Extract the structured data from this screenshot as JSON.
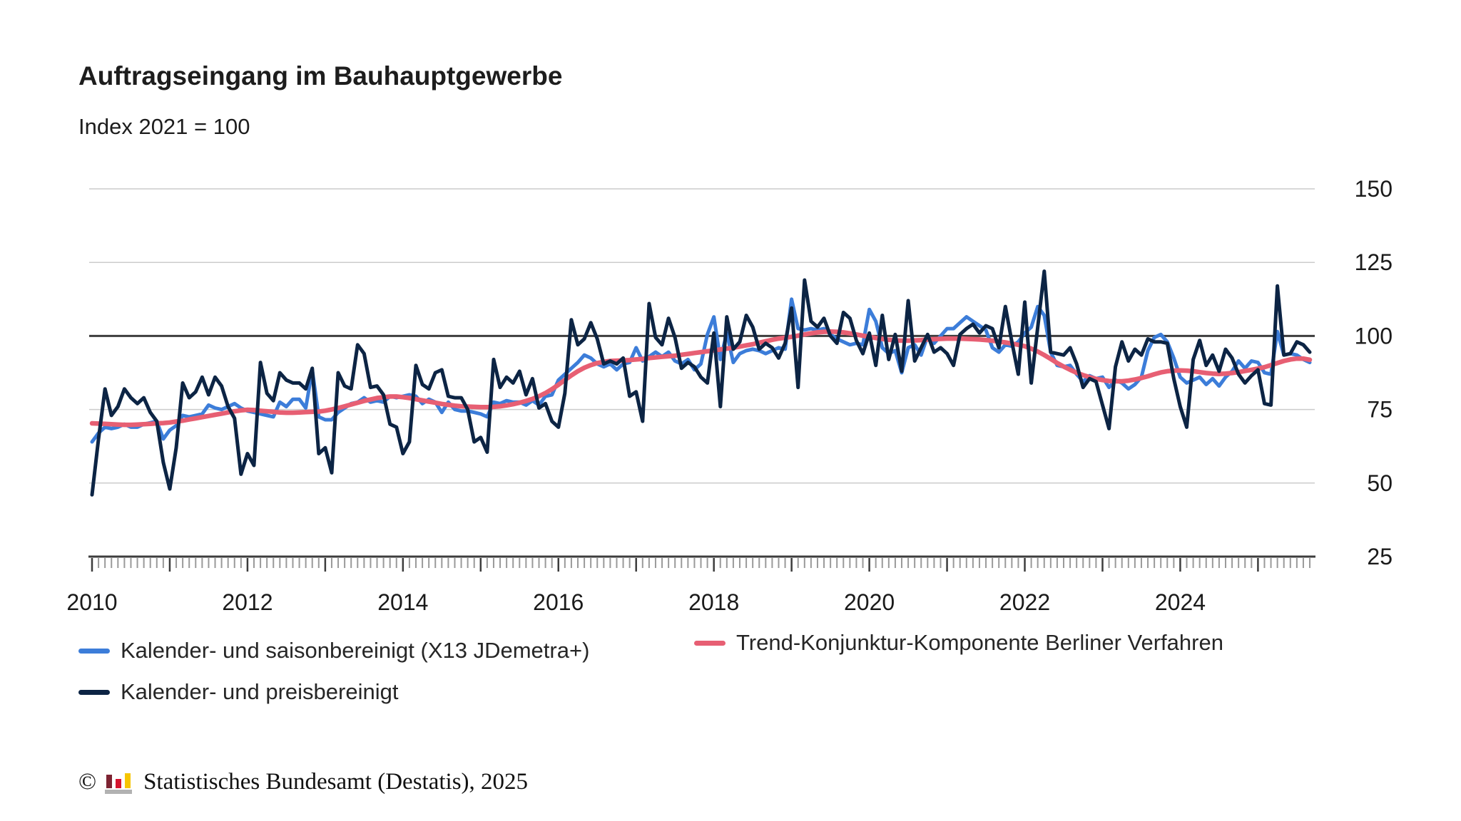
{
  "chart": {
    "title": "Auftragseingang im Bauhauptgewerbe",
    "subtitle": "Index 2021 = 100",
    "copyright_symbol": "©",
    "source": "Statistisches Bundesamt (Destatis), 2025",
    "logo_name": "destatis-bar-chart-logo",
    "colors": {
      "seasonally_adjusted": "#3c7dd9",
      "trend": "#e75f73",
      "price_adjusted": "#0c2444",
      "gridline": "#cccccc",
      "baseline": "#3d3d3d",
      "axis": "#3d3d3d",
      "month_tick": "#9a9a9a",
      "text": "#1a1a1a"
    }
  },
  "legend": [
    {
      "label": "Kalender- und saisonbereinigt (X13 JDemetra+)",
      "color": "#3c7dd9"
    },
    {
      "label": "Trend-Konjunktur-Komponente Berliner Verfahren",
      "color": "#e75f73"
    },
    {
      "label": "Kalender- und preisbereinigt",
      "color": "#0c2444"
    }
  ],
  "chart_data": {
    "type": "line",
    "title": "Auftragseingang im Bauhauptgewerbe",
    "subtitle": "Index 2021 = 100",
    "x_start": "2010-01",
    "frequency": "monthly",
    "x_tick_years": [
      2010,
      2012,
      2014,
      2016,
      2018,
      2020,
      2022,
      2024
    ],
    "ylim": [
      25,
      150
    ],
    "y_ticks": [
      150,
      125,
      100,
      75,
      50,
      25
    ],
    "baseline_value": 100,
    "grid": "horizontal-only",
    "legend_position": "bottom",
    "series": [
      {
        "name": "Kalender- und saisonbereinigt (X13 JDemetra+)",
        "color": "#3c7dd9",
        "values": [
          64,
          67,
          69,
          68.5,
          69,
          70,
          69,
          69,
          70,
          70.5,
          71,
          65,
          68,
          69.5,
          73,
          72.5,
          73,
          73.5,
          76.5,
          75.5,
          75,
          76,
          77,
          75.5,
          74.5,
          74,
          73.5,
          73,
          72.5,
          77.5,
          76,
          78.5,
          78.5,
          75.5,
          88.5,
          72.5,
          71.5,
          71.5,
          74,
          75.5,
          77,
          77.5,
          79,
          77.5,
          78,
          77.5,
          79.5,
          79,
          79.5,
          80,
          79.5,
          77,
          78.5,
          77.5,
          74,
          77.5,
          75,
          74.5,
          74.5,
          74,
          73.5,
          72.5,
          77.5,
          77,
          78,
          77.5,
          77.5,
          76.5,
          78,
          76.5,
          79.5,
          80,
          85,
          87,
          89,
          91,
          93.5,
          92.5,
          90.5,
          89.5,
          90.5,
          88.5,
          90.5,
          91,
          96,
          91.5,
          93,
          94.5,
          93,
          94.5,
          91.5,
          90.5,
          92,
          88.5,
          90.5,
          100.5,
          106.5,
          92,
          101,
          91,
          94,
          95,
          95.5,
          95,
          94,
          95,
          96,
          95.5,
          112.5,
          102.5,
          102,
          102.5,
          102,
          102.5,
          100.5,
          99,
          98,
          97,
          97.5,
          97,
          109,
          105,
          96,
          94,
          95,
          87.5,
          96,
          97,
          93.5,
          100,
          97.5,
          100,
          102.5,
          102.5,
          104.5,
          106.5,
          105,
          103.5,
          102,
          96,
          94.5,
          97,
          96.5,
          98,
          101,
          103,
          110,
          107,
          94.5,
          90,
          89.5,
          90,
          87,
          84.5,
          86.5,
          85.5,
          86,
          82.5,
          85,
          84,
          82,
          83.5,
          86,
          95,
          99.5,
          100.5,
          98,
          92.5,
          86,
          84,
          85,
          86,
          83.5,
          85.5,
          83,
          86,
          88,
          91.5,
          89,
          91.5,
          91,
          87.5,
          87,
          101.5,
          93.5,
          94,
          93.5,
          92,
          91
        ]
      },
      {
        "name": "Trend-Konjunktur-Komponente Berliner Verfahren",
        "color": "#e75f73",
        "values": [
          70.3,
          70.2,
          70.1,
          70,
          69.9,
          69.8,
          69.8,
          69.9,
          70,
          70.1,
          70.3,
          70.4,
          70.6,
          70.9,
          71.2,
          71.6,
          72,
          72.4,
          72.8,
          73.2,
          73.6,
          74,
          74.4,
          74.7,
          74.9,
          74.8,
          74.6,
          74.4,
          74.2,
          74,
          73.9,
          73.9,
          74,
          74.1,
          74.2,
          74.3,
          74.6,
          75,
          75.5,
          76.1,
          76.7,
          77.3,
          77.9,
          78.4,
          78.9,
          79.2,
          79.4,
          79.4,
          79.2,
          78.9,
          78.5,
          78.1,
          77.7,
          77.3,
          76.9,
          76.6,
          76.3,
          76.1,
          76,
          75.9,
          75.8,
          75.8,
          75.9,
          76.1,
          76.4,
          76.8,
          77.3,
          77.9,
          78.6,
          79.5,
          80.6,
          81.9,
          83.4,
          85,
          86.6,
          88,
          89.2,
          90.1,
          90.8,
          91.2,
          91.5,
          91.6,
          91.7,
          91.8,
          92,
          92.2,
          92.5,
          92.7,
          92.9,
          93.1,
          93.3,
          93.6,
          93.9,
          94.2,
          94.5,
          94.8,
          95.1,
          95.4,
          95.7,
          96,
          96.4,
          96.8,
          97.2,
          97.7,
          98.2,
          98.7,
          99.1,
          99.4,
          99.7,
          100.1,
          100.5,
          100.9,
          101.2,
          101.4,
          101.5,
          101.4,
          101.2,
          100.9,
          100.5,
          100.1,
          99.7,
          99.3,
          99,
          98.7,
          98.5,
          98.4,
          98.4,
          98.5,
          98.6,
          98.8,
          98.9,
          99,
          99.1,
          99.1,
          99.1,
          99,
          98.9,
          98.8,
          98.6,
          98.4,
          98.1,
          97.8,
          97.4,
          97,
          96.5,
          95.7,
          94.7,
          93.5,
          92.2,
          90.8,
          89.6,
          88.5,
          87.5,
          86.7,
          86,
          85.4,
          85,
          84.7,
          84.6,
          84.6,
          84.8,
          85.2,
          85.7,
          86.3,
          87,
          87.6,
          88,
          88.2,
          88.3,
          88.2,
          88,
          87.7,
          87.4,
          87.2,
          87.1,
          87.2,
          87.4,
          87.7,
          88.1,
          88.5,
          88.9,
          89.4,
          90.1,
          90.8,
          91.5,
          92,
          92.3,
          92.3,
          91.9
        ]
      },
      {
        "name": "Kalender- und preisbereinigt",
        "color": "#0c2444",
        "values": [
          46,
          65,
          82,
          73,
          76,
          82,
          79,
          77,
          79,
          74,
          71,
          57,
          48,
          62,
          84,
          79,
          81,
          86,
          80,
          86,
          83,
          76,
          72,
          53,
          60,
          56,
          91,
          80.5,
          78,
          87.5,
          85,
          84,
          84,
          82,
          89,
          60,
          62,
          53.5,
          87.5,
          83,
          82,
          97,
          94,
          82.5,
          83,
          80,
          70,
          69,
          60,
          64,
          90,
          83.5,
          82,
          87.5,
          88.5,
          79.5,
          79,
          79,
          75,
          64,
          65.5,
          60.5,
          92,
          82.5,
          86,
          84,
          88,
          80,
          85.5,
          75.5,
          77,
          71,
          69,
          80.5,
          105.5,
          97,
          99,
          104.5,
          99,
          90.5,
          91.5,
          90.5,
          92.5,
          79.5,
          81,
          71,
          111,
          99.5,
          97,
          106,
          99.5,
          89,
          91,
          89.5,
          86,
          84,
          101,
          76,
          106.5,
          95.5,
          98,
          107,
          103,
          95.5,
          97.5,
          96,
          92.5,
          97.5,
          109.5,
          82.5,
          119,
          105,
          103,
          106,
          100,
          97.5,
          108,
          106,
          98.5,
          94,
          101,
          90,
          107,
          92,
          100.5,
          88,
          112,
          91.5,
          96,
          100.5,
          94.5,
          96,
          94,
          90,
          100.5,
          102.5,
          104,
          101,
          103.5,
          102.5,
          96,
          110,
          98,
          87,
          111.5,
          84,
          103,
          122,
          94.5,
          94,
          93.5,
          96,
          90.5,
          82.5,
          85.5,
          84.5,
          76.5,
          68.5,
          89.5,
          98,
          91.5,
          95.5,
          93.5,
          99,
          98,
          98,
          97.5,
          85.5,
          76,
          69,
          92,
          98.5,
          90,
          93.5,
          88,
          95.5,
          92.5,
          87,
          84,
          86.5,
          88.5,
          77,
          76.5,
          117,
          93.5,
          94,
          98,
          97,
          94.5
        ]
      }
    ]
  }
}
